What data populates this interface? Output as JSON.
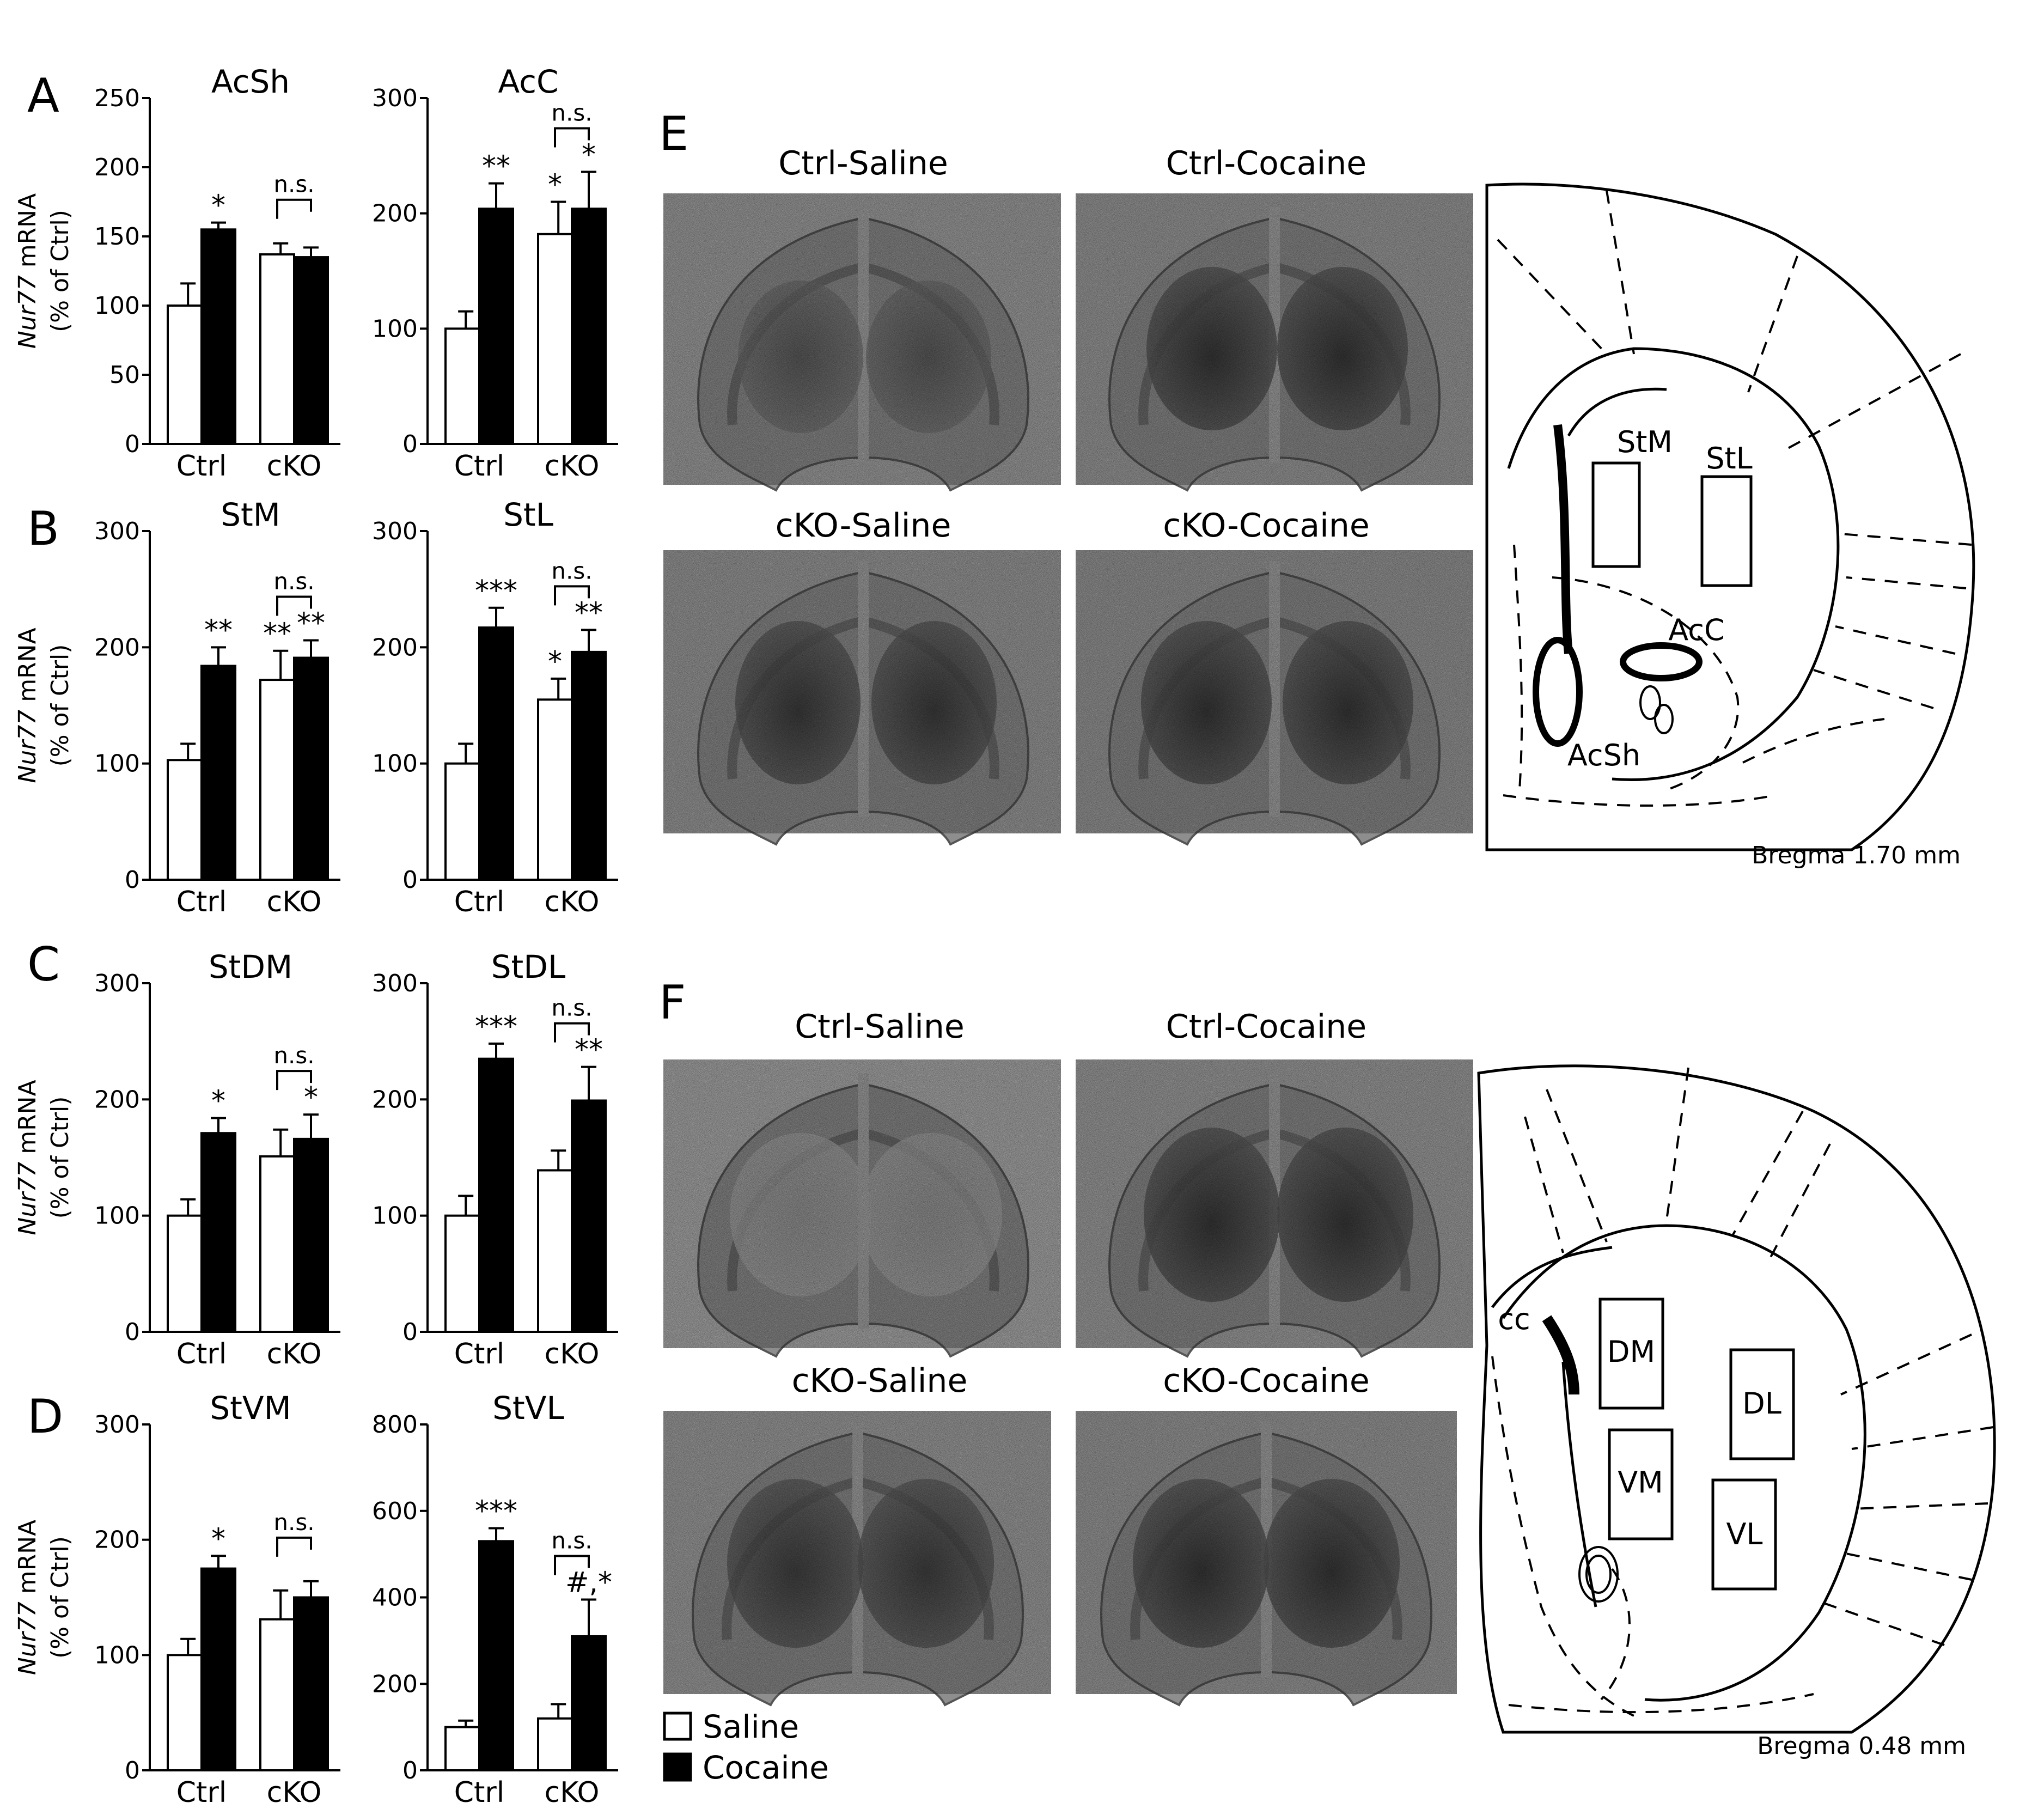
{
  "figure": {
    "panel_labels": [
      "A",
      "B",
      "C",
      "D",
      "E",
      "F"
    ],
    "y_axis_label_gene": "Nur77",
    "y_axis_label_rest": " mRNA",
    "y_axis_label_unit": "(% of Ctrl)",
    "legend": [
      {
        "label": "Saline",
        "color": "#ffffff"
      },
      {
        "label": "Cocaine",
        "color": "#000000"
      }
    ],
    "panel_E": {
      "images": [
        "Ctrl-Saline",
        "Ctrl-Cocaine",
        "cKO-Saline",
        "cKO-Cocaine"
      ],
      "atlas_labels": [
        "StM",
        "StL",
        "AcC",
        "AcSh"
      ],
      "bregma": "Bregma 1.70 mm"
    },
    "panel_F": {
      "images": [
        "Ctrl-Saline",
        "Ctrl-Cocaine",
        "cKO-Saline",
        "cKO-Cocaine"
      ],
      "atlas_labels": [
        "cc",
        "DM",
        "DL",
        "VM",
        "VL"
      ],
      "bregma": "Bregma 0.48 mm"
    }
  },
  "chart_data": [
    {
      "type": "bar",
      "panel": "A",
      "title": "AcSh",
      "categories": [
        "Ctrl",
        "cKO"
      ],
      "ylim": [
        0,
        250
      ],
      "yticks": [
        0,
        50,
        100,
        150,
        200,
        250
      ],
      "series": [
        {
          "name": "Saline",
          "values": [
            100,
            137
          ],
          "errors": [
            16,
            8
          ]
        },
        {
          "name": "Cocaine",
          "values": [
            155,
            135
          ],
          "errors": [
            5,
            7
          ]
        }
      ],
      "annotations": {
        "marks": [
          "",
          "*",
          "",
          ""
        ],
        "ns": "n.s."
      }
    },
    {
      "type": "bar",
      "panel": "A",
      "title": "AcC",
      "categories": [
        "Ctrl",
        "cKO"
      ],
      "ylim": [
        0,
        300
      ],
      "yticks": [
        0,
        100,
        200,
        300
      ],
      "series": [
        {
          "name": "Saline",
          "values": [
            100,
            182
          ],
          "errors": [
            15,
            28
          ]
        },
        {
          "name": "Cocaine",
          "values": [
            204,
            204
          ],
          "errors": [
            22,
            32
          ]
        }
      ],
      "annotations": {
        "marks": [
          "",
          "**",
          "*",
          "*"
        ],
        "ns": "n.s."
      }
    },
    {
      "type": "bar",
      "panel": "B",
      "title": "StM",
      "categories": [
        "Ctrl",
        "cKO"
      ],
      "ylim": [
        0,
        300
      ],
      "yticks": [
        0,
        100,
        200,
        300
      ],
      "series": [
        {
          "name": "Saline",
          "values": [
            103,
            172
          ],
          "errors": [
            14,
            25
          ]
        },
        {
          "name": "Cocaine",
          "values": [
            184,
            191
          ],
          "errors": [
            16,
            15
          ]
        }
      ],
      "annotations": {
        "marks": [
          "",
          "**",
          "**",
          "**"
        ],
        "ns": "n.s."
      }
    },
    {
      "type": "bar",
      "panel": "B",
      "title": "StL",
      "categories": [
        "Ctrl",
        "cKO"
      ],
      "ylim": [
        0,
        300
      ],
      "yticks": [
        0,
        100,
        200,
        300
      ],
      "series": [
        {
          "name": "Saline",
          "values": [
            100,
            155
          ],
          "errors": [
            17,
            18
          ]
        },
        {
          "name": "Cocaine",
          "values": [
            217,
            196
          ],
          "errors": [
            17,
            19
          ]
        }
      ],
      "annotations": {
        "marks": [
          "",
          "***",
          "*",
          "**"
        ],
        "ns": "n.s."
      }
    },
    {
      "type": "bar",
      "panel": "C",
      "title": "StDM",
      "categories": [
        "Ctrl",
        "cKO"
      ],
      "ylim": [
        0,
        300
      ],
      "yticks": [
        0,
        100,
        200,
        300
      ],
      "series": [
        {
          "name": "Saline",
          "values": [
            100,
            151
          ],
          "errors": [
            14,
            23
          ]
        },
        {
          "name": "Cocaine",
          "values": [
            171,
            166
          ],
          "errors": [
            13,
            21
          ]
        }
      ],
      "annotations": {
        "marks": [
          "",
          "*",
          "",
          "*"
        ],
        "ns": "n.s."
      }
    },
    {
      "type": "bar",
      "panel": "C",
      "title": "StDL",
      "categories": [
        "Ctrl",
        "cKO"
      ],
      "ylim": [
        0,
        300
      ],
      "yticks": [
        0,
        100,
        200,
        300
      ],
      "series": [
        {
          "name": "Saline",
          "values": [
            100,
            139
          ],
          "errors": [
            17,
            17
          ]
        },
        {
          "name": "Cocaine",
          "values": [
            235,
            199
          ],
          "errors": [
            13,
            29
          ]
        }
      ],
      "annotations": {
        "marks": [
          "",
          "***",
          "",
          "**"
        ],
        "ns": "n.s."
      }
    },
    {
      "type": "bar",
      "panel": "D",
      "title": "StVM",
      "categories": [
        "Ctrl",
        "cKO"
      ],
      "ylim": [
        0,
        300
      ],
      "yticks": [
        0,
        100,
        200,
        300
      ],
      "series": [
        {
          "name": "Saline",
          "values": [
            100,
            131
          ],
          "errors": [
            14,
            25
          ]
        },
        {
          "name": "Cocaine",
          "values": [
            175,
            150
          ],
          "errors": [
            11,
            14
          ]
        }
      ],
      "annotations": {
        "marks": [
          "",
          "*",
          "",
          ""
        ],
        "ns": "n.s."
      }
    },
    {
      "type": "bar",
      "panel": "D",
      "title": "StVL",
      "categories": [
        "Ctrl",
        "cKO"
      ],
      "ylim": [
        0,
        800
      ],
      "yticks": [
        0,
        200,
        400,
        600,
        800
      ],
      "series": [
        {
          "name": "Saline",
          "values": [
            100,
            120
          ],
          "errors": [
            15,
            33
          ]
        },
        {
          "name": "Cocaine",
          "values": [
            530,
            310
          ],
          "errors": [
            30,
            85
          ]
        }
      ],
      "annotations": {
        "marks": [
          "",
          "***",
          "",
          "#,*"
        ],
        "ns": "n.s."
      }
    }
  ]
}
